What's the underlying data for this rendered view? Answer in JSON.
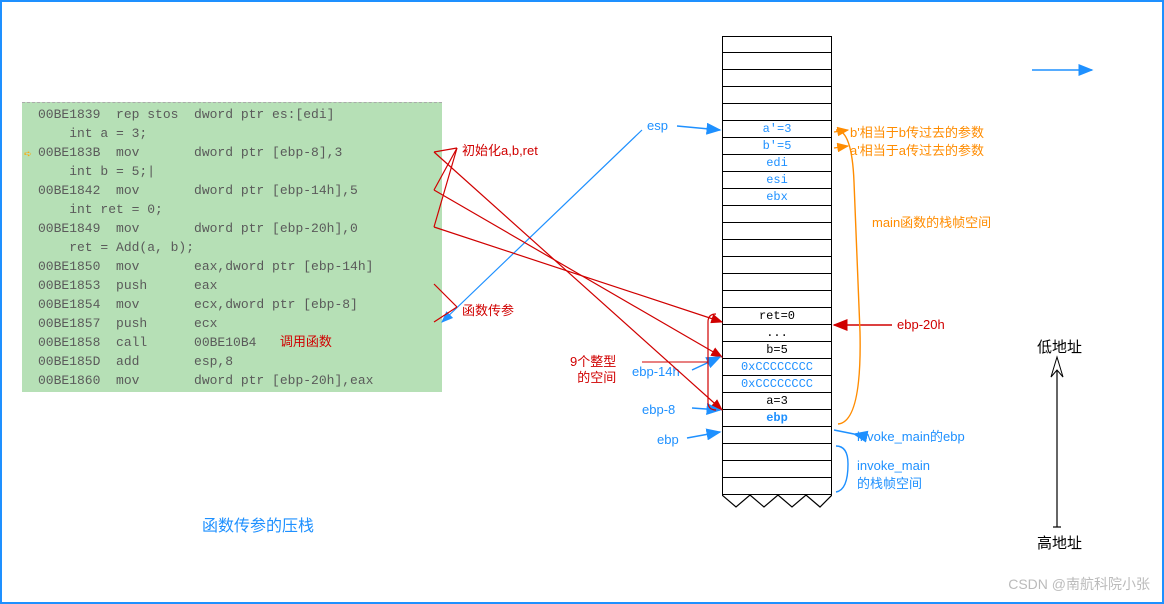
{
  "disasm": {
    "lines": [
      {
        "addr": "00BE1839",
        "op": "rep stos",
        "args": "dword ptr es:[edi]",
        "marker": false
      },
      {
        "addr": "    int a = 3;",
        "op": "",
        "args": "",
        "marker": false,
        "raw": true
      },
      {
        "addr": "00BE183B",
        "op": "mov",
        "args": "dword ptr [ebp-8],3",
        "marker": true
      },
      {
        "addr": "    int b = 5;|",
        "op": "",
        "args": "",
        "marker": false,
        "raw": true
      },
      {
        "addr": "00BE1842",
        "op": "mov",
        "args": "dword ptr [ebp-14h],5",
        "marker": false
      },
      {
        "addr": "    int ret = 0;",
        "op": "",
        "args": "",
        "marker": false,
        "raw": true
      },
      {
        "addr": "00BE1849",
        "op": "mov",
        "args": "dword ptr [ebp-20h],0",
        "marker": false
      },
      {
        "addr": "    ret = Add(a, b);",
        "op": "",
        "args": "",
        "marker": false,
        "raw": true
      },
      {
        "addr": "00BE1850",
        "op": "mov",
        "args": "eax,dword ptr [ebp-14h]",
        "marker": false
      },
      {
        "addr": "00BE1853",
        "op": "push",
        "args": "eax",
        "marker": false
      },
      {
        "addr": "00BE1854",
        "op": "mov",
        "args": "ecx,dword ptr [ebp-8]",
        "marker": false
      },
      {
        "addr": "00BE1857",
        "op": "push",
        "args": "ecx",
        "marker": false
      },
      {
        "addr": "00BE1858",
        "op": "call",
        "args": "00BE10B4",
        "marker": false,
        "extra": "调用函数",
        "extra_color": "#d00000"
      },
      {
        "addr": "00BE185D",
        "op": "add",
        "args": "esp,8",
        "marker": false
      },
      {
        "addr": "00BE1860",
        "op": "mov",
        "args": "dword ptr [ebp-20h],eax",
        "marker": false
      }
    ]
  },
  "caption": "函数传参的压栈",
  "stack_cells": [
    {
      "t": "",
      "c": ""
    },
    {
      "t": "",
      "c": ""
    },
    {
      "t": "",
      "c": ""
    },
    {
      "t": "",
      "c": ""
    },
    {
      "t": "",
      "c": ""
    },
    {
      "t": "a'=3",
      "c": "blue"
    },
    {
      "t": "b'=5",
      "c": "blue"
    },
    {
      "t": "edi",
      "c": "blue"
    },
    {
      "t": "esi",
      "c": "blue"
    },
    {
      "t": "ebx",
      "c": "blue"
    },
    {
      "t": "",
      "c": ""
    },
    {
      "t": "",
      "c": ""
    },
    {
      "t": "",
      "c": ""
    },
    {
      "t": "",
      "c": ""
    },
    {
      "t": "",
      "c": ""
    },
    {
      "t": "",
      "c": ""
    },
    {
      "t": "ret=0",
      "c": ""
    },
    {
      "t": "...",
      "c": ""
    },
    {
      "t": "b=5",
      "c": ""
    },
    {
      "t": "0xCCCCCCCC",
      "c": "blue"
    },
    {
      "t": "0xCCCCCCCC",
      "c": "blue"
    },
    {
      "t": "a=3",
      "c": ""
    },
    {
      "t": "ebp",
      "c": "blueb"
    },
    {
      "t": "",
      "c": ""
    },
    {
      "t": "",
      "c": ""
    },
    {
      "t": "",
      "c": ""
    },
    {
      "t": "",
      "c": ""
    }
  ],
  "labels": {
    "esp": "esp",
    "init": "初始化a,b,ret",
    "passarg": "函数传参",
    "ebp14": "ebp-14h",
    "ebp8": "ebp-8",
    "ebp": "ebp",
    "nine": "9个整型\n的空间",
    "ebp20": "ebp-20h",
    "b_note": "b'相当于b传过去的参数",
    "a_note": "a'相当于a传过去的参数",
    "mainframe": "main函数的栈帧空间",
    "invoke_ebp": "invoke_main的ebp",
    "invoke_frame": "invoke_main\n的栈帧空间",
    "low": "低地址",
    "high": "高地址"
  },
  "watermark": "CSDN @南航科院小张",
  "colors": {
    "blue": "#1e90ff",
    "red": "#d00000",
    "orange": "#ff8c00",
    "green_bg": "#b6e0b6"
  }
}
